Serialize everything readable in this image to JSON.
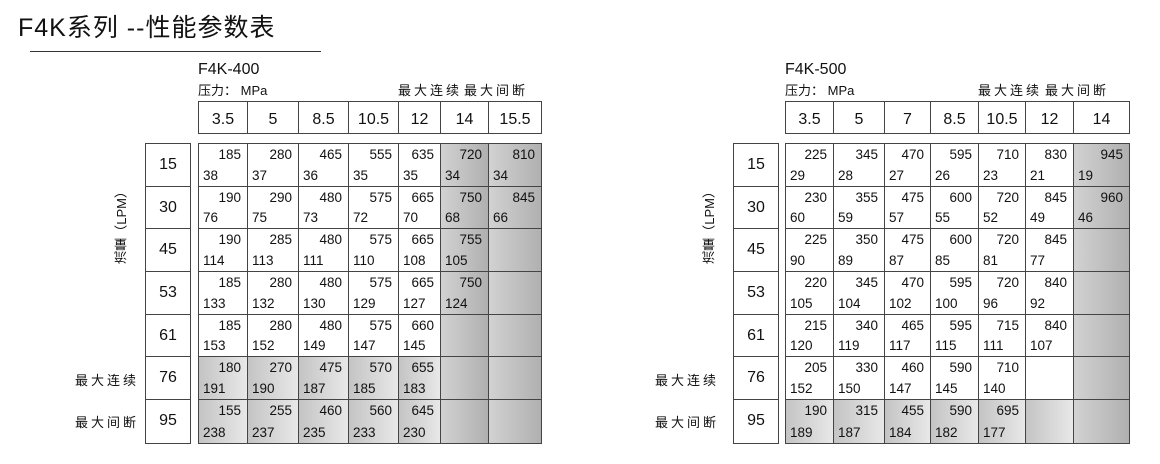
{
  "title": "F4K系列 --性能参数表",
  "flow_axis_label": "流量（LPM）",
  "tables": [
    {
      "model": "F4K-400",
      "pressure_unit": "压力：  MPa",
      "max_continuous": "最大连续",
      "max_intermittent": "最大间断",
      "pressures": [
        "3.5",
        "5",
        "8.5",
        "10.5",
        "12",
        "14",
        "15.5"
      ],
      "shaded_columns": [
        5,
        6
      ],
      "shaded_rows": [
        5,
        6
      ],
      "rows": [
        {
          "flow": "15",
          "cells": [
            [
              "185",
              "38"
            ],
            [
              "280",
              "37"
            ],
            [
              "465",
              "36"
            ],
            [
              "555",
              "35"
            ],
            [
              "635",
              "35"
            ],
            [
              "720",
              "34"
            ],
            [
              "810",
              "34"
            ]
          ]
        },
        {
          "flow": "30",
          "cells": [
            [
              "190",
              "76"
            ],
            [
              "290",
              "75"
            ],
            [
              "480",
              "73"
            ],
            [
              "575",
              "72"
            ],
            [
              "665",
              "70"
            ],
            [
              "750",
              "68"
            ],
            [
              "845",
              "66"
            ]
          ]
        },
        {
          "flow": "45",
          "cells": [
            [
              "190",
              "114"
            ],
            [
              "285",
              "113"
            ],
            [
              "480",
              "111"
            ],
            [
              "575",
              "110"
            ],
            [
              "665",
              "108"
            ],
            [
              "755",
              "105"
            ],
            null
          ]
        },
        {
          "flow": "53",
          "cells": [
            [
              "185",
              "133"
            ],
            [
              "280",
              "132"
            ],
            [
              "480",
              "130"
            ],
            [
              "575",
              "129"
            ],
            [
              "665",
              "127"
            ],
            [
              "750",
              "124"
            ],
            null
          ]
        },
        {
          "flow": "61",
          "cells": [
            [
              "185",
              "153"
            ],
            [
              "280",
              "152"
            ],
            [
              "480",
              "149"
            ],
            [
              "575",
              "147"
            ],
            [
              "660",
              "145"
            ],
            null,
            null
          ]
        },
        {
          "flow": "76",
          "label": "最大连续",
          "cells": [
            [
              "180",
              "191"
            ],
            [
              "270",
              "190"
            ],
            [
              "475",
              "187"
            ],
            [
              "570",
              "185"
            ],
            [
              "655",
              "183"
            ],
            null,
            null
          ]
        },
        {
          "flow": "95",
          "label": "最大间断",
          "cells": [
            [
              "155",
              "238"
            ],
            [
              "255",
              "237"
            ],
            [
              "460",
              "235"
            ],
            [
              "560",
              "233"
            ],
            [
              "645",
              "230"
            ],
            null,
            null
          ]
        }
      ]
    },
    {
      "model": "F4K-500",
      "pressure_unit": "压力：  MPa",
      "max_continuous": "最大连续",
      "max_intermittent": "最大间断",
      "pressures": [
        "3.5",
        "5",
        "7",
        "8.5",
        "10.5",
        "12",
        "14"
      ],
      "shaded_columns": [
        6
      ],
      "shaded_rows": [
        6
      ],
      "rows": [
        {
          "flow": "15",
          "cells": [
            [
              "225",
              "29"
            ],
            [
              "345",
              "28"
            ],
            [
              "470",
              "27"
            ],
            [
              "595",
              "26"
            ],
            [
              "710",
              "23"
            ],
            [
              "830",
              "21"
            ],
            [
              "945",
              "19"
            ]
          ]
        },
        {
          "flow": "30",
          "cells": [
            [
              "230",
              "60"
            ],
            [
              "355",
              "59"
            ],
            [
              "475",
              "57"
            ],
            [
              "600",
              "55"
            ],
            [
              "720",
              "52"
            ],
            [
              "845",
              "49"
            ],
            [
              "960",
              "46"
            ]
          ]
        },
        {
          "flow": "45",
          "cells": [
            [
              "225",
              "90"
            ],
            [
              "350",
              "89"
            ],
            [
              "475",
              "87"
            ],
            [
              "600",
              "85"
            ],
            [
              "720",
              "81"
            ],
            [
              "845",
              "77"
            ],
            null
          ]
        },
        {
          "flow": "53",
          "cells": [
            [
              "220",
              "105"
            ],
            [
              "345",
              "104"
            ],
            [
              "470",
              "102"
            ],
            [
              "595",
              "100"
            ],
            [
              "720",
              "96"
            ],
            [
              "840",
              "92"
            ],
            null
          ]
        },
        {
          "flow": "61",
          "cells": [
            [
              "215",
              "120"
            ],
            [
              "340",
              "119"
            ],
            [
              "465",
              "117"
            ],
            [
              "595",
              "115"
            ],
            [
              "715",
              "111"
            ],
            [
              "840",
              "107"
            ],
            null
          ]
        },
        {
          "flow": "76",
          "label": "最大连续",
          "cells": [
            [
              "205",
              "152"
            ],
            [
              "330",
              "150"
            ],
            [
              "460",
              "147"
            ],
            [
              "590",
              "145"
            ],
            [
              "710",
              "140"
            ],
            null,
            null
          ]
        },
        {
          "flow": "95",
          "label": "最大间断",
          "cells": [
            [
              "190",
              "189"
            ],
            [
              "315",
              "187"
            ],
            [
              "455",
              "184"
            ],
            [
              "590",
              "182"
            ],
            [
              "695",
              "177"
            ],
            null,
            null
          ]
        }
      ]
    }
  ]
}
